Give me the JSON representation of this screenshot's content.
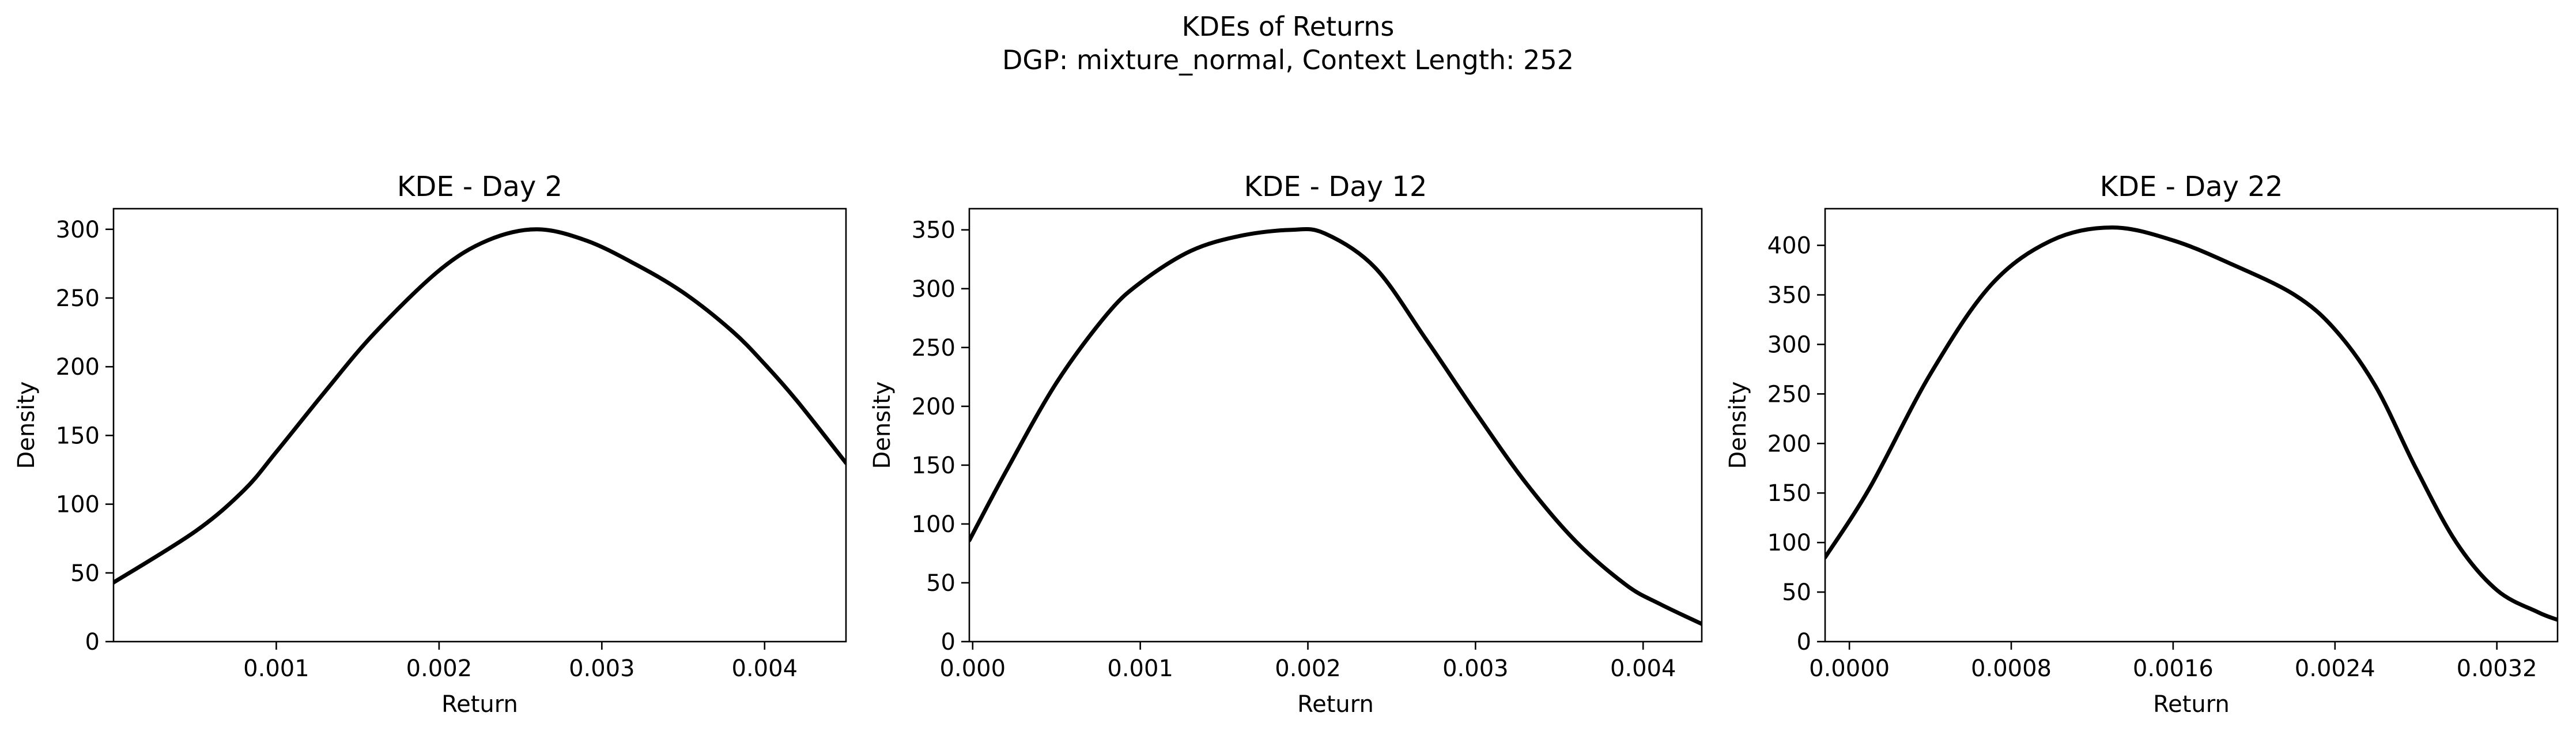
{
  "figure": {
    "suptitle_line1": "KDEs of Returns",
    "suptitle_line2": "DGP: mixture_normal, Context Length: 252"
  },
  "chart_data": [
    {
      "type": "line",
      "title": "KDE - Day 2",
      "xlabel": "Return",
      "ylabel": "Density",
      "xlim": [
        0.0,
        0.0045
      ],
      "ylim": [
        0,
        315
      ],
      "xticks": [
        0.001,
        0.002,
        0.003,
        0.004
      ],
      "xtick_labels": [
        "0.001",
        "0.002",
        "0.003",
        "0.004"
      ],
      "yticks": [
        0,
        50,
        100,
        150,
        200,
        250,
        300
      ],
      "ytick_labels": [
        "0",
        "50",
        "100",
        "150",
        "200",
        "250",
        "300"
      ],
      "grid": false,
      "line_color": "#000000",
      "x": [
        0.0,
        0.0005,
        0.0008,
        0.001,
        0.0013,
        0.0016,
        0.002,
        0.0023,
        0.0026,
        0.0029,
        0.0032,
        0.0035,
        0.0038,
        0.004,
        0.0042,
        0.0045
      ],
      "y": [
        43,
        80,
        110,
        138,
        182,
        224,
        270,
        292,
        300,
        292,
        275,
        254,
        226,
        202,
        175,
        130
      ]
    },
    {
      "type": "line",
      "title": "KDE - Day 12",
      "xlabel": "Return",
      "ylabel": "Density",
      "xlim": [
        -2e-05,
        0.00435
      ],
      "ylim": [
        0,
        368
      ],
      "xticks": [
        0.0,
        0.001,
        0.002,
        0.003,
        0.004
      ],
      "xtick_labels": [
        "0.000",
        "0.001",
        "0.002",
        "0.003",
        "0.004"
      ],
      "yticks": [
        0,
        50,
        100,
        150,
        200,
        250,
        300,
        350
      ],
      "ytick_labels": [
        "0",
        "50",
        "100",
        "150",
        "200",
        "250",
        "300",
        "350"
      ],
      "grid": false,
      "line_color": "#000000",
      "x": [
        -2e-05,
        0.0002,
        0.0005,
        0.0008,
        0.001,
        0.0013,
        0.0016,
        0.0019,
        0.0021,
        0.0024,
        0.0027,
        0.003,
        0.0033,
        0.0036,
        0.0039,
        0.0041,
        0.00435
      ],
      "y": [
        86,
        145,
        220,
        278,
        305,
        332,
        345,
        350,
        347,
        318,
        258,
        195,
        135,
        85,
        48,
        32,
        15
      ]
    },
    {
      "type": "line",
      "title": "KDE - Day 22",
      "xlabel": "Return",
      "ylabel": "Density",
      "xlim": [
        -0.00012,
        0.0035
      ],
      "ylim": [
        0,
        437
      ],
      "xticks": [
        0.0,
        0.0008,
        0.0016,
        0.0024,
        0.0032
      ],
      "xtick_labels": [
        "0.0000",
        "0.0008",
        "0.0016",
        "0.0024",
        "0.0032"
      ],
      "yticks": [
        0,
        50,
        100,
        150,
        200,
        250,
        300,
        350,
        400
      ],
      "ytick_labels": [
        "0",
        "50",
        "100",
        "150",
        "200",
        "250",
        "300",
        "350",
        "400"
      ],
      "grid": false,
      "line_color": "#000000",
      "x": [
        -0.00012,
        0.0001,
        0.0004,
        0.0007,
        0.001,
        0.0013,
        0.0016,
        0.0019,
        0.0022,
        0.0024,
        0.0026,
        0.0028,
        0.003,
        0.0032,
        0.0034,
        0.0035
      ],
      "y": [
        85,
        155,
        270,
        360,
        405,
        418,
        405,
        380,
        350,
        315,
        258,
        175,
        100,
        52,
        30,
        22
      ]
    }
  ]
}
